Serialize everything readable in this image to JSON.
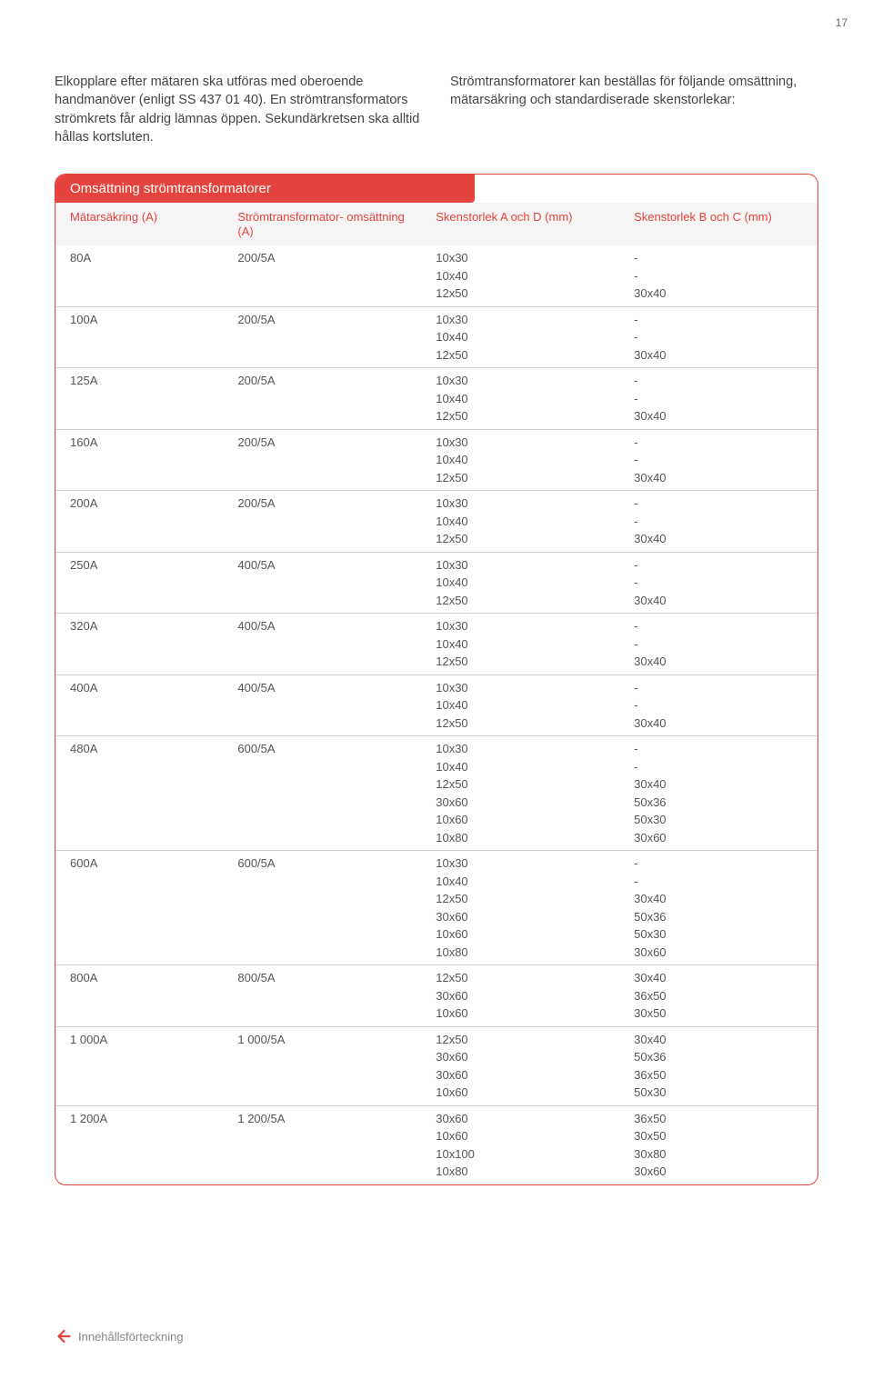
{
  "page_number": "17",
  "intro": {
    "left": "Elkopplare efter mätaren ska utföras med oberoende handmanöver (enligt SS 437 01 40). En strömtransformators strömkrets får aldrig lämnas öppen. Sekundärkretsen ska alltid hållas kortsluten.",
    "right": "Strömtransformatorer kan beställas för följande omsättning, mätarsäkring och standardiserade skenstorlekar:"
  },
  "table": {
    "title": "Omsättning strömtransformatorer",
    "headers": [
      "Mätarsäkring\n(A)",
      "Strömtransformator-\nomsättning (A)",
      "Skenstorlek\nA och D (mm)",
      "Skenstorlek\nB och C (mm)"
    ],
    "rows": [
      {
        "c0": "80A",
        "c1": "200/5A",
        "c2": "10x30\n10x40\n12x50",
        "c3": "-\n-\n30x40"
      },
      {
        "c0": "100A",
        "c1": "200/5A",
        "c2": "10x30\n10x40\n12x50",
        "c3": "-\n-\n30x40"
      },
      {
        "c0": "125A",
        "c1": "200/5A",
        "c2": "10x30\n10x40\n12x50",
        "c3": "-\n-\n30x40"
      },
      {
        "c0": "160A",
        "c1": "200/5A",
        "c2": "10x30\n10x40\n12x50",
        "c3": "-\n-\n30x40"
      },
      {
        "c0": "200A",
        "c1": "200/5A",
        "c2": "10x30\n10x40\n12x50",
        "c3": "-\n-\n30x40"
      },
      {
        "c0": "250A",
        "c1": "400/5A",
        "c2": "10x30\n10x40\n12x50",
        "c3": "-\n-\n30x40"
      },
      {
        "c0": "320A",
        "c1": "400/5A",
        "c2": "10x30\n10x40\n12x50",
        "c3": "-\n-\n30x40"
      },
      {
        "c0": "400A",
        "c1": "400/5A",
        "c2": "10x30\n10x40\n12x50",
        "c3": "-\n-\n30x40"
      },
      {
        "c0": "480A",
        "c1": "600/5A",
        "c2": "10x30\n10x40\n12x50\n30x60\n10x60\n10x80",
        "c3": "-\n-\n30x40\n50x36\n50x30\n30x60"
      },
      {
        "c0": "600A",
        "c1": "600/5A",
        "c2": "10x30\n10x40\n12x50\n30x60\n10x60\n10x80",
        "c3": "-\n-\n30x40\n50x36\n50x30\n30x60"
      },
      {
        "c0": "800A",
        "c1": "800/5A",
        "c2": "12x50\n30x60\n10x60",
        "c3": "30x40\n36x50\n30x50"
      },
      {
        "c0": "1 000A",
        "c1": "1 000/5A",
        "c2": "12x50\n30x60\n30x60\n10x60",
        "c3": "30x40\n50x36\n36x50\n50x30"
      },
      {
        "c0": "1 200A",
        "c1": "1 200/5A",
        "c2": "30x60\n10x60\n10x100\n10x80",
        "c3": "36x50\n30x50\n30x80\n30x60"
      }
    ]
  },
  "footer": {
    "back_label": "Innehållsförteckning",
    "arrow_color": "#e5433d"
  },
  "styling": {
    "accent_color": "#e5433d",
    "header_bg": "#f5f5f5",
    "border_color": "#cfcfcf",
    "text_color": "#555555"
  }
}
